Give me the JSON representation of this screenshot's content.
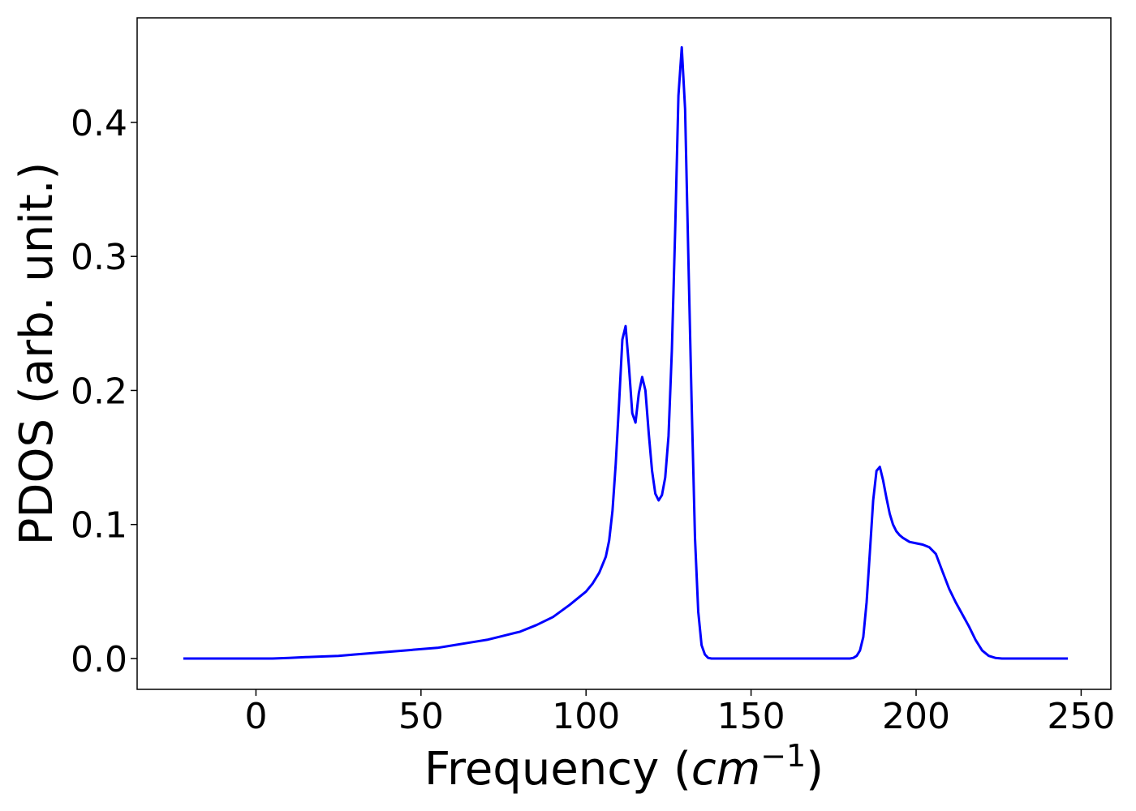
{
  "chart_data": {
    "type": "line",
    "xlabel": "Frequency (",
    "xlabel_math": "cm",
    "xlabel_sup": "−1",
    "xlabel_close": ")",
    "ylabel": "PDOS (arb. unit.)",
    "xlim": [
      -36,
      259
    ],
    "ylim": [
      -0.023,
      0.478
    ],
    "xticks": [
      0,
      50,
      100,
      150,
      200,
      250
    ],
    "xtick_labels": [
      "0",
      "50",
      "100",
      "150",
      "200",
      "250"
    ],
    "yticks": [
      0.0,
      0.1,
      0.2,
      0.3,
      0.4
    ],
    "ytick_labels": [
      "0.0",
      "0.1",
      "0.2",
      "0.3",
      "0.4"
    ],
    "grid": false,
    "series": [
      {
        "color": "#0000ff",
        "x": [
          -22,
          -10,
          0,
          5,
          10,
          15,
          20,
          25,
          30,
          35,
          40,
          45,
          50,
          55,
          60,
          65,
          70,
          75,
          80,
          85,
          90,
          95,
          100,
          102,
          104,
          106,
          107,
          108,
          109,
          110,
          111,
          112,
          113,
          114,
          115,
          116,
          117,
          118,
          119,
          120,
          121,
          122,
          123,
          124,
          125,
          126,
          127,
          128,
          129,
          130,
          131,
          132,
          133,
          134,
          135,
          136,
          137,
          138,
          139,
          140,
          141,
          142,
          143,
          144,
          145,
          146,
          147,
          150,
          160,
          170,
          180,
          181,
          182,
          183,
          184,
          185,
          186,
          187,
          188,
          189,
          190,
          191,
          192,
          193,
          194,
          195,
          196,
          198,
          200,
          202,
          204,
          206,
          208,
          210,
          212,
          214,
          216,
          218,
          220,
          222,
          224,
          226,
          228,
          230,
          240,
          246
        ],
        "y": [
          0.0,
          0.0,
          0.0,
          0.0,
          0.0005,
          0.001,
          0.0015,
          0.002,
          0.003,
          0.004,
          0.005,
          0.006,
          0.007,
          0.008,
          0.01,
          0.012,
          0.014,
          0.017,
          0.02,
          0.025,
          0.031,
          0.04,
          0.05,
          0.056,
          0.064,
          0.076,
          0.088,
          0.11,
          0.145,
          0.19,
          0.238,
          0.248,
          0.218,
          0.183,
          0.176,
          0.198,
          0.21,
          0.2,
          0.168,
          0.14,
          0.123,
          0.118,
          0.122,
          0.135,
          0.166,
          0.23,
          0.32,
          0.42,
          0.456,
          0.41,
          0.3,
          0.19,
          0.09,
          0.035,
          0.01,
          0.003,
          0.0005,
          0.0,
          0.0,
          0.0,
          0.0,
          0.0,
          0.0,
          0.0,
          0.0,
          0.0,
          0.0,
          0.0,
          0.0,
          0.0,
          0.0,
          0.0005,
          0.002,
          0.006,
          0.016,
          0.042,
          0.08,
          0.118,
          0.14,
          0.143,
          0.133,
          0.12,
          0.108,
          0.1,
          0.095,
          0.092,
          0.09,
          0.087,
          0.086,
          0.085,
          0.083,
          0.078,
          0.065,
          0.052,
          0.042,
          0.033,
          0.024,
          0.014,
          0.006,
          0.002,
          0.0005,
          0.0,
          0.0,
          0.0,
          0.0,
          0.0
        ]
      }
    ]
  }
}
